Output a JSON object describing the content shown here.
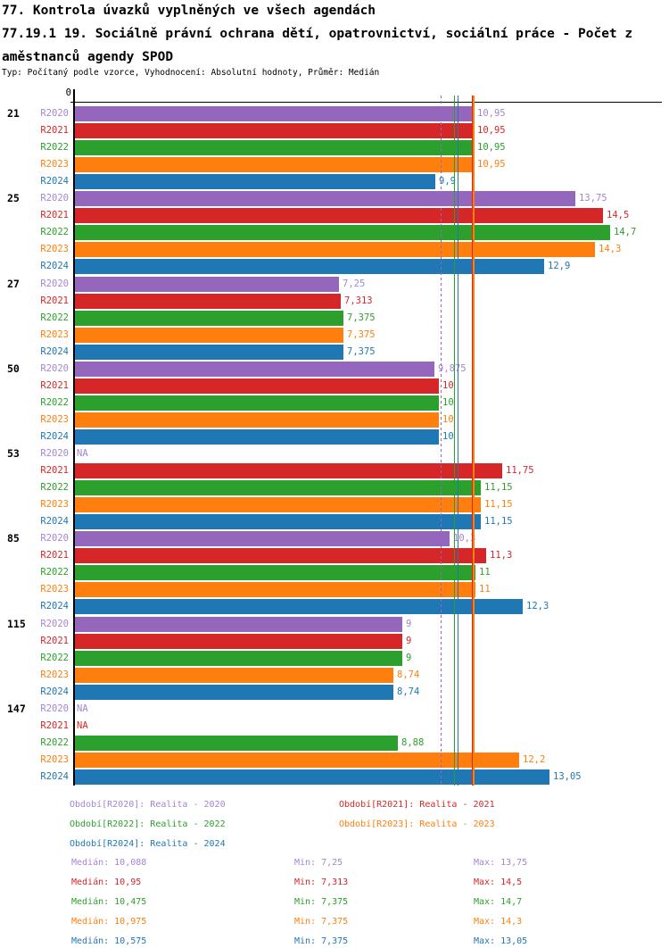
{
  "header": {
    "title_line1": "77. Kontrola úvazků vyplněných ve všech agendách",
    "title_line2": "77.19.1 19. Sociálně právní ochrana dětí, opatrovnictví, sociální práce - Počet z",
    "title_line3": "aměstnanců agendy SPOD",
    "subtitle": "Typ: Počítaný podle vzorce, Vyhodnocení: Absolutní hodnoty, Průměr: Medián"
  },
  "chart_data": {
    "type": "bar",
    "orientation": "horizontal",
    "value_axis": {
      "zero_label": "0",
      "min": 0,
      "grid": false
    },
    "series": [
      {
        "id": "R2020",
        "label": "R2020",
        "color": "#9467bd",
        "text_color": "#a585d2",
        "legend_label": "Období[R2020]: Realita - 2020",
        "median": 10.088,
        "median_line_style": "dashed",
        "median_line_width": 1,
        "stats": {
          "median_label": "Medián: 10,088",
          "min_label": "Min: 7,25",
          "max_label": "Max: 13,75"
        }
      },
      {
        "id": "R2021",
        "label": "R2021",
        "color": "#d62728",
        "text_color": "#d62728",
        "legend_label": "Období[R2021]: Realita - 2021",
        "median": 10.95,
        "median_line_style": "solid",
        "median_line_width": 2,
        "stats": {
          "median_label": "Medián: 10,95",
          "min_label": "Min: 7,313",
          "max_label": "Max: 14,5"
        }
      },
      {
        "id": "R2022",
        "label": "R2022",
        "color": "#2ca02c",
        "text_color": "#2ca02c",
        "legend_label": "Období[R2022]: Realita - 2022",
        "median": 10.475,
        "median_line_style": "solid",
        "median_line_width": 1,
        "stats": {
          "median_label": "Medián: 10,475",
          "min_label": "Min: 7,375",
          "max_label": "Max: 14,7"
        }
      },
      {
        "id": "R2023",
        "label": "R2023",
        "color": "#ff7f0e",
        "text_color": "#ff7f0e",
        "legend_label": "Období[R2023]: Realita - 2023",
        "median": 10.975,
        "median_line_style": "solid",
        "median_line_width": 2,
        "stats": {
          "median_label": "Medián: 10,975",
          "min_label": "Min: 7,375",
          "max_label": "Max: 14,3"
        }
      },
      {
        "id": "R2024",
        "label": "R2024",
        "color": "#1f77b4",
        "text_color": "#1f77b4",
        "legend_label": "Období[R2024]: Realita - 2024",
        "median": 10.575,
        "median_line_style": "solid",
        "median_line_width": 1,
        "stats": {
          "median_label": "Medián: 10,575",
          "min_label": "Min: 7,375",
          "max_label": "Max: 13,05"
        }
      }
    ],
    "groups": [
      {
        "label": "21",
        "rows": [
          {
            "series": "R2020",
            "value": 10.95,
            "display": "10,95"
          },
          {
            "series": "R2021",
            "value": 10.95,
            "display": "10,95"
          },
          {
            "series": "R2022",
            "value": 10.95,
            "display": "10,95"
          },
          {
            "series": "R2023",
            "value": 10.95,
            "display": "10,95"
          },
          {
            "series": "R2024",
            "value": 9.9,
            "display": "9,9"
          }
        ]
      },
      {
        "label": "25",
        "rows": [
          {
            "series": "R2020",
            "value": 13.75,
            "display": "13,75"
          },
          {
            "series": "R2021",
            "value": 14.5,
            "display": "14,5"
          },
          {
            "series": "R2022",
            "value": 14.7,
            "display": "14,7"
          },
          {
            "series": "R2023",
            "value": 14.3,
            "display": "14,3"
          },
          {
            "series": "R2024",
            "value": 12.9,
            "display": "12,9"
          }
        ]
      },
      {
        "label": "27",
        "rows": [
          {
            "series": "R2020",
            "value": 7.25,
            "display": "7,25"
          },
          {
            "series": "R2021",
            "value": 7.313,
            "display": "7,313"
          },
          {
            "series": "R2022",
            "value": 7.375,
            "display": "7,375"
          },
          {
            "series": "R2023",
            "value": 7.375,
            "display": "7,375"
          },
          {
            "series": "R2024",
            "value": 7.375,
            "display": "7,375"
          }
        ]
      },
      {
        "label": "50",
        "rows": [
          {
            "series": "R2020",
            "value": 9.875,
            "display": "9,875"
          },
          {
            "series": "R2021",
            "value": 10,
            "display": "10"
          },
          {
            "series": "R2022",
            "value": 10,
            "display": "10"
          },
          {
            "series": "R2023",
            "value": 10,
            "display": "10"
          },
          {
            "series": "R2024",
            "value": 10,
            "display": "10"
          }
        ]
      },
      {
        "label": "53",
        "rows": [
          {
            "series": "R2020",
            "value": null,
            "display": "NA"
          },
          {
            "series": "R2021",
            "value": 11.75,
            "display": "11,75"
          },
          {
            "series": "R2022",
            "value": 11.15,
            "display": "11,15"
          },
          {
            "series": "R2023",
            "value": 11.15,
            "display": "11,15"
          },
          {
            "series": "R2024",
            "value": 11.15,
            "display": "11,15"
          }
        ]
      },
      {
        "label": "85",
        "rows": [
          {
            "series": "R2020",
            "value": 10.3,
            "display": "10,3"
          },
          {
            "series": "R2021",
            "value": 11.3,
            "display": "11,3"
          },
          {
            "series": "R2022",
            "value": 11,
            "display": "11"
          },
          {
            "series": "R2023",
            "value": 11,
            "display": "11"
          },
          {
            "series": "R2024",
            "value": 12.3,
            "display": "12,3"
          }
        ]
      },
      {
        "label": "115",
        "rows": [
          {
            "series": "R2020",
            "value": 9,
            "display": "9"
          },
          {
            "series": "R2021",
            "value": 9,
            "display": "9"
          },
          {
            "series": "R2022",
            "value": 9,
            "display": "9"
          },
          {
            "series": "R2023",
            "value": 8.74,
            "display": "8,74"
          },
          {
            "series": "R2024",
            "value": 8.74,
            "display": "8,74"
          }
        ]
      },
      {
        "label": "147",
        "rows": [
          {
            "series": "R2020",
            "value": null,
            "display": "NA"
          },
          {
            "series": "R2021",
            "value": null,
            "display": "NA"
          },
          {
            "series": "R2022",
            "value": 8.88,
            "display": "8,88"
          },
          {
            "series": "R2023",
            "value": 12.2,
            "display": "12,2"
          },
          {
            "series": "R2024",
            "value": 13.05,
            "display": "13,05"
          }
        ]
      }
    ],
    "legend_layout": {
      "left_column": [
        "R2020",
        "R2022",
        "R2024"
      ],
      "right_column": [
        "R2021",
        "R2023"
      ]
    }
  }
}
